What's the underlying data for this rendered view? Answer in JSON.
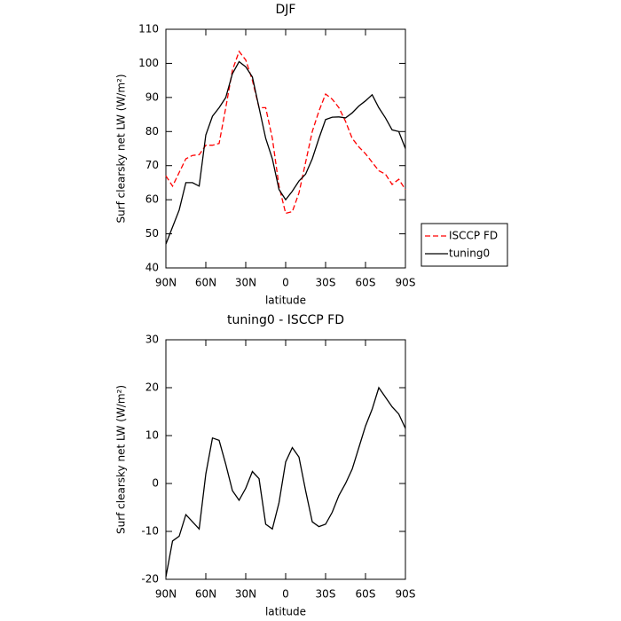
{
  "chart_data": [
    {
      "type": "line",
      "title": "DJF",
      "ylabel": "Surf clearsky net LW (W/m²)",
      "xlabel": "latitude",
      "x": [
        90,
        85,
        80,
        75,
        70,
        65,
        60,
        55,
        50,
        45,
        40,
        35,
        30,
        25,
        20,
        15,
        10,
        5,
        0,
        -5,
        -10,
        -15,
        -20,
        -25,
        -30,
        -35,
        -40,
        -45,
        -50,
        -55,
        -60,
        -65,
        -70,
        -75,
        -80,
        -85,
        -90
      ],
      "series": [
        {
          "name": "ISCCP FD",
          "color": "#ff0000",
          "linestyle": "dashed",
          "values": [
            67,
            64,
            68,
            72,
            73,
            73.2,
            76,
            76,
            76.5,
            87,
            98,
            103.5,
            101,
            95,
            87,
            87,
            78,
            64,
            56,
            56.5,
            62,
            71,
            80,
            86,
            91,
            89.5,
            87,
            83,
            78,
            75.5,
            73.5,
            71,
            68.5,
            67.5,
            64.5,
            66,
            63
          ]
        },
        {
          "name": "tuning0",
          "color": "#000000",
          "linestyle": "solid",
          "values": [
            47,
            52,
            57,
            65,
            65,
            64,
            79,
            84.5,
            87,
            90,
            97,
            100.5,
            99,
            96,
            87,
            78,
            72,
            63,
            60,
            62.5,
            65.5,
            67.5,
            72,
            78,
            83.5,
            84.2,
            84.3,
            84,
            85.5,
            87.5,
            89,
            90.8,
            87,
            84,
            80.5,
            80,
            75
          ]
        }
      ],
      "xlim": [
        90,
        -90
      ],
      "xticks": [
        {
          "value": 90,
          "label": "90N"
        },
        {
          "value": 60,
          "label": "60N"
        },
        {
          "value": 30,
          "label": "30N"
        },
        0,
        {
          "value": -30,
          "label": "30S"
        },
        {
          "value": -60,
          "label": "60S"
        },
        {
          "value": -90,
          "label": "90S"
        }
      ],
      "ylim": [
        40,
        110
      ],
      "yticks": [
        40,
        50,
        60,
        70,
        80,
        90,
        100,
        110
      ],
      "legend": "right"
    },
    {
      "type": "line",
      "title": "tuning0 - ISCCP FD",
      "ylabel": "Surf clearsky net LW (W/m²)",
      "xlabel": "latitude",
      "x": [
        90,
        85,
        80,
        75,
        70,
        65,
        60,
        55,
        50,
        45,
        40,
        35,
        30,
        25,
        20,
        15,
        10,
        5,
        0,
        -5,
        -10,
        -15,
        -20,
        -25,
        -30,
        -35,
        -40,
        -45,
        -50,
        -55,
        -60,
        -65,
        -70,
        -75,
        -80,
        -85,
        -90
      ],
      "values": [
        -19.5,
        -12,
        -11,
        -6.5,
        -8,
        -9.5,
        2,
        9.5,
        9,
        4,
        -1.5,
        -3.5,
        -1,
        2.5,
        1,
        -8.5,
        -9.5,
        -4,
        4.5,
        7.5,
        5.5,
        -1.5,
        -8,
        -9,
        -8.5,
        -6,
        -2.5,
        0,
        3,
        7.5,
        12,
        15.5,
        20,
        18,
        16,
        14.5,
        11.5
      ],
      "color": "#000000",
      "xlim": [
        90,
        -90
      ],
      "xticks": [
        {
          "value": 90,
          "label": "90N"
        },
        {
          "value": 60,
          "label": "60N"
        },
        {
          "value": 30,
          "label": "30N"
        },
        0,
        {
          "value": -30,
          "label": "30S"
        },
        {
          "value": -60,
          "label": "60S"
        },
        {
          "value": -90,
          "label": "90S"
        }
      ],
      "ylim": [
        -20,
        30
      ],
      "yticks": [
        -20,
        -10,
        0,
        10,
        20,
        30
      ]
    }
  ]
}
